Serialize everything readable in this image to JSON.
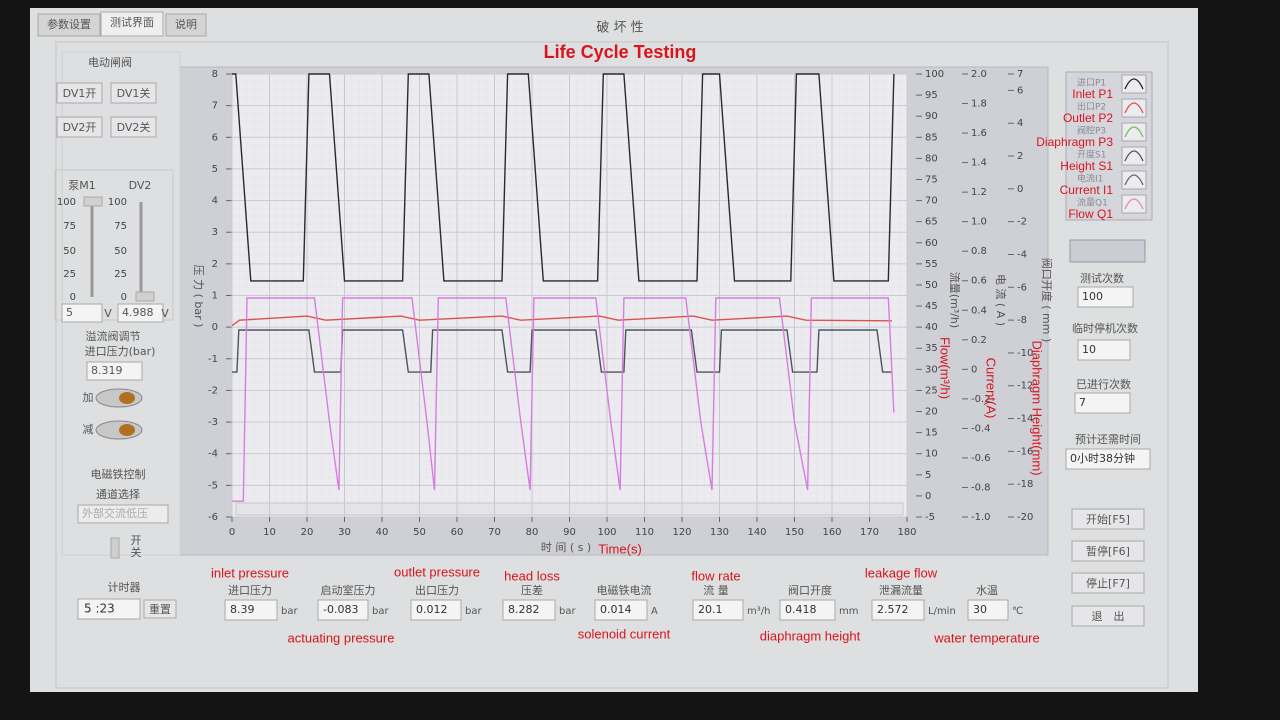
{
  "tabs": [
    "参数设置",
    "测试界面",
    "说明"
  ],
  "window_title": "破 坏 性",
  "annotation": "Life Cycle Testing",
  "left_panel": {
    "valve_group": {
      "title": "电动闸阀",
      "buttons": [
        "DV1开",
        "DV1关",
        "DV2开",
        "DV2关"
      ]
    },
    "sliders": {
      "labels": [
        "泵M1",
        "DV2"
      ],
      "scale": [
        100,
        75,
        50,
        25,
        0
      ],
      "values": [
        "5",
        "4.988"
      ],
      "unit": "V"
    },
    "relief": {
      "title": "溢流阀调节",
      "label": "进口压力(bar)",
      "value": "8.319",
      "buttons": [
        "加",
        "减"
      ]
    },
    "solenoid": {
      "title": "电磁铁控制",
      "label": "通道选择",
      "selection": "外部交流低压",
      "switch": [
        "开",
        "关"
      ]
    },
    "timer": {
      "title": "计时器",
      "value": "5 :23",
      "button": "重置"
    }
  },
  "chart": {
    "type": "line",
    "ylabel": "压 力 ( bar )",
    "xlabel": "时 间 ( s )",
    "xlabel_en": "Time(s)",
    "xlim": [
      0,
      180
    ],
    "xticks": [
      0,
      10,
      20,
      30,
      40,
      50,
      60,
      70,
      80,
      90,
      100,
      110,
      120,
      130,
      140,
      150,
      160,
      170,
      180
    ],
    "ylim": [
      -6,
      8
    ],
    "yticks": [
      -6,
      -5,
      -4,
      -3,
      -2,
      -1,
      0,
      1,
      2,
      3,
      4,
      5,
      6,
      7,
      8
    ],
    "grid": true,
    "right_axes": [
      {
        "label": "流量(m³/h)",
        "label_en": "Flow(m³/h)",
        "lim": [
          -5,
          100
        ],
        "ticks": [
          100,
          95,
          90,
          85,
          80,
          75,
          70,
          65,
          60,
          55,
          50,
          45,
          40,
          35,
          30,
          25,
          20,
          15,
          10,
          5,
          0,
          -5
        ]
      },
      {
        "label": "电 流 ( A )",
        "label_en": "Current(A)",
        "lim": [
          -1,
          2
        ],
        "ticks": [
          {
            "value": 2,
            "label": "2.0"
          },
          1.8,
          1.6,
          1.4,
          1.2,
          {
            "value": 1,
            "label": "1.0"
          },
          0.8,
          0.6,
          0.4,
          0.2,
          0,
          -0.2,
          -0.4,
          -0.6,
          -0.8,
          {
            "value": -1,
            "label": "-1.0"
          }
        ]
      },
      {
        "label": "阀口开度 ( mm )",
        "label_en": "Diaphragm Height(mm)",
        "lim": [
          -20,
          7
        ],
        "ticks": [
          7,
          6,
          4,
          2,
          0,
          -2,
          -4,
          -6,
          -8,
          -10,
          -12,
          -14,
          -16,
          -18,
          -20
        ]
      }
    ],
    "series": [
      {
        "color": "#2a2a2a",
        "x": [
          0,
          1,
          5,
          19,
          20.5,
          26,
          30,
          45.5,
          47,
          52.5,
          56.5,
          72,
          73.5,
          79,
          83,
          97.5,
          99,
          104.5,
          108.5,
          124,
          125.5,
          130,
          134,
          149,
          150.5,
          156.5,
          160.5,
          175,
          176.5
        ],
        "values": [
          8,
          8,
          1.46,
          1.46,
          8,
          8,
          1.46,
          1.46,
          8,
          8,
          1.46,
          1.46,
          8,
          8,
          1.46,
          1.46,
          8,
          8,
          1.46,
          1.46,
          8,
          8,
          1.46,
          1.46,
          8,
          8,
          1.46,
          1.46,
          8
        ]
      },
      {
        "color": "#e0504a",
        "x": [
          0,
          2,
          20,
          25,
          45,
          50,
          72,
          77,
          98,
          103,
          123,
          128,
          148,
          153,
          176
        ],
        "values": [
          0.05,
          0.22,
          0.35,
          0.22,
          0.35,
          0.22,
          0.35,
          0.22,
          0.35,
          0.22,
          0.35,
          0.22,
          0.35,
          0.22,
          0.2
        ]
      },
      {
        "color": "#4a5560",
        "x": [
          0,
          1.3,
          1.8,
          20.5,
          22,
          29,
          29.5,
          45.5,
          47,
          53,
          53.5,
          72,
          73.5,
          79.5,
          80,
          97,
          98.5,
          104.5,
          105,
          122.5,
          124,
          130,
          130.5,
          148,
          149.5,
          156,
          156.5,
          172,
          173.5,
          176
        ],
        "values": [
          -1.42,
          -1.42,
          -0.09,
          -0.09,
          -1.42,
          -1.42,
          -0.09,
          -0.09,
          -1.42,
          -1.42,
          -0.09,
          -0.09,
          -1.42,
          -1.42,
          -0.09,
          -0.09,
          -1.42,
          -1.42,
          -0.09,
          -0.09,
          -1.42,
          -1.42,
          -0.09,
          -0.09,
          -1.42,
          -1.42,
          -0.09,
          -0.09,
          -1.42,
          -1.42
        ]
      },
      {
        "color": "#d67ee0",
        "x": [
          0,
          3,
          4,
          22,
          26,
          28.5,
          29.5,
          48,
          52,
          54,
          55,
          73,
          77,
          79.5,
          80.5,
          97,
          101,
          103.5,
          104.5,
          121,
          125,
          128,
          129,
          146,
          150,
          153.5,
          154.5,
          175,
          176.5
        ],
        "values": [
          -5.5,
          -5.5,
          0.92,
          0.92,
          -3,
          -5.15,
          0.92,
          0.92,
          -3,
          -5.15,
          0.92,
          0.92,
          -3,
          -5.15,
          0.92,
          0.92,
          -3,
          -5.15,
          0.92,
          0.92,
          -3,
          -5.15,
          0.92,
          0.92,
          -3,
          -5.15,
          0.92,
          0.92,
          -2.7
        ]
      }
    ]
  },
  "legend": [
    {
      "cn": "进口P1",
      "en": "Inlet P1",
      "color": "#222222"
    },
    {
      "cn": "出口P2",
      "en": "Outlet P2",
      "color": "#e0504a"
    },
    {
      "cn": "阀腔P3",
      "en": "Diaphragm P3",
      "color": "#6cc04a"
    },
    {
      "cn": "开度S1",
      "en": "Height S1",
      "color": "#555555"
    },
    {
      "cn": "电流I1",
      "en": "Current I1",
      "color": "#666666"
    },
    {
      "cn": "流量Q1",
      "en": "Flow Q1",
      "color": "#e08aa0"
    }
  ],
  "indicators": [
    {
      "cn": "进口压力",
      "value": "8.39",
      "unit": "bar",
      "en": "inlet pressure"
    },
    {
      "cn": "启动室压力",
      "value": "-0.083",
      "unit": "bar",
      "en": "actuating pressure"
    },
    {
      "cn": "出口压力",
      "value": "0.012",
      "unit": "bar",
      "en": "outlet pressure"
    },
    {
      "cn": "压差",
      "value": "8.282",
      "unit": "bar",
      "en": "head loss"
    },
    {
      "cn": "电磁铁电流",
      "value": "0.014",
      "unit": "A",
      "en": "solenoid current"
    },
    {
      "cn": "流 量",
      "value": "20.1",
      "unit": "m³/h",
      "en": "flow rate"
    },
    {
      "cn": "阀口开度",
      "value": "0.418",
      "unit": "mm",
      "en": "diaphragm height"
    },
    {
      "cn": "泄漏流量",
      "value": "2.572",
      "unit": "L/min",
      "en": "leakage flow"
    },
    {
      "cn": "水温",
      "value": "30",
      "unit": "℃",
      "en": "water temperature"
    }
  ],
  "right_panel": {
    "fields": [
      {
        "label": "测试次数",
        "value": "100"
      },
      {
        "label": "临时停机次数",
        "value": "10"
      },
      {
        "label": "已进行次数",
        "value": "7"
      },
      {
        "label": "预计还需时间",
        "value": "0小时38分钟"
      }
    ],
    "buttons": [
      "开始[F5]",
      "暂停[F6]",
      "停止[F7]",
      "退　出"
    ]
  }
}
